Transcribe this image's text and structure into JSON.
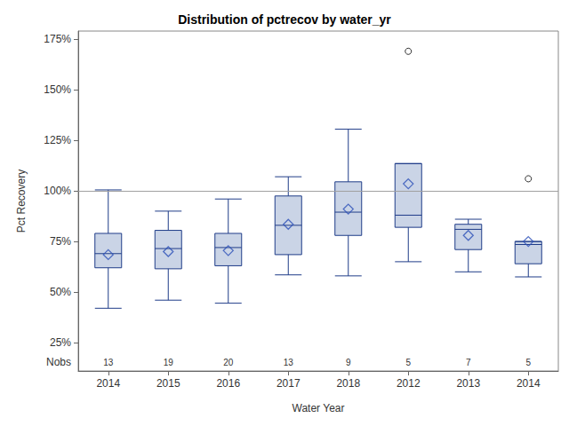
{
  "chart_data": {
    "type": "boxplot",
    "title": "Distribution of pctrecov by water_yr",
    "x_label": "Water Year",
    "y_label": "Pct Recovery",
    "categories": [
      "2014",
      "2015",
      "2016",
      "2017",
      "2018",
      "2012",
      "2013",
      "2014"
    ],
    "whisker_low": [
      42,
      46,
      44.5,
      58.5,
      58,
      65,
      60,
      57.5
    ],
    "q1": [
      62,
      61.5,
      63,
      68.5,
      78,
      82,
      71,
      64
    ],
    "median": [
      69,
      71.5,
      72,
      83,
      89.5,
      88,
      81,
      73.5
    ],
    "q3": [
      79,
      80.5,
      79,
      97.5,
      104.5,
      113.5,
      83.5,
      75
    ],
    "whisker_high": [
      100.5,
      90,
      96,
      107,
      130.5,
      113.5,
      86,
      75
    ],
    "mean": [
      68.5,
      70,
      70.5,
      83.5,
      91,
      103.5,
      78,
      75
    ],
    "outliers": [
      [],
      [],
      [],
      [],
      [],
      [
        169
      ],
      [],
      [
        106
      ]
    ],
    "nobs_label": "Nobs",
    "nobs": [
      13,
      19,
      20,
      13,
      9,
      5,
      7,
      5
    ],
    "refline": 100,
    "color": "#1f3c88",
    "marker": "diamond",
    "ylim": [
      11,
      179
    ],
    "yticks": [
      {
        "value": 25,
        "label": "25%"
      },
      {
        "value": 50,
        "label": "50%"
      },
      {
        "value": 75,
        "label": "75%"
      },
      {
        "value": 100,
        "label": "100%"
      },
      {
        "value": 125,
        "label": "125%"
      },
      {
        "value": 150,
        "label": "150%"
      },
      {
        "value": 175,
        "label": "175%"
      }
    ],
    "grid": false
  }
}
